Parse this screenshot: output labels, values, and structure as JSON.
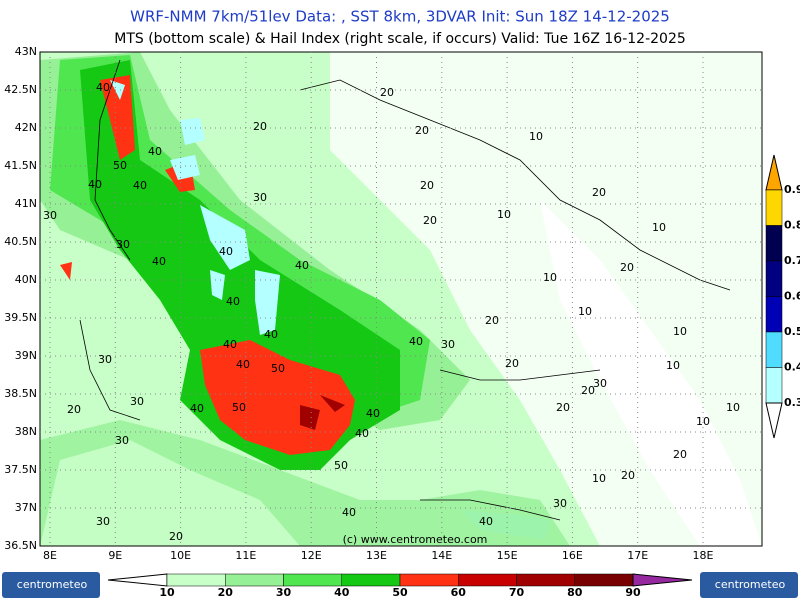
{
  "header": {
    "title": "WRF-NMM 7km/51lev   Data: , SST 8km, 3DVAR    Init: Sun 18Z 14-12-2025",
    "subtitle": "MTS (bottom scale) & Hail Index (right scale, if occurs) Valid: Tue 16Z 16-12-2025"
  },
  "map": {
    "lat_labels": [
      "43N",
      "42.5N",
      "42N",
      "41.5N",
      "41N",
      "40.5N",
      "40N",
      "39.5N",
      "39N",
      "38.5N",
      "38N",
      "37.5N",
      "37N",
      "36.5N"
    ],
    "lon_labels": [
      "8E",
      "9E",
      "10E",
      "11E",
      "12E",
      "13E",
      "14E",
      "15E",
      "16E",
      "17E",
      "18E"
    ],
    "watermark": "(c)  www.centrometeo.com",
    "contour_labels": [
      "40",
      "50",
      "40",
      "40",
      "30",
      "40",
      "30",
      "40",
      "20",
      "30",
      "40",
      "40",
      "40",
      "40",
      "40",
      "20",
      "20",
      "20",
      "20",
      "10",
      "20",
      "10",
      "10",
      "20",
      "10",
      "10",
      "20",
      "10",
      "40",
      "30",
      "30",
      "40",
      "50",
      "20",
      "10",
      "30",
      "20",
      "30",
      "40",
      "50",
      "20",
      "10",
      "20",
      "40",
      "40",
      "30",
      "10",
      "20",
      "50",
      "10",
      "20",
      "30",
      "40",
      "40",
      "30",
      "20"
    ]
  },
  "scale_bottom": {
    "labels": [
      "10",
      "20",
      "30",
      "40",
      "50",
      "60",
      "70",
      "80",
      "90"
    ],
    "colors": [
      "#ffffff",
      "#c8ffc8",
      "#96f096",
      "#50e650",
      "#14c814",
      "#ff3214",
      "#c80000",
      "#a00000",
      "#780000",
      "#c800c8",
      "#9628a0"
    ]
  },
  "scale_right": {
    "labels": [
      "0.9",
      "0.8",
      "0.7",
      "0.6",
      "0.5",
      "0.4",
      "0.3"
    ],
    "colors": [
      "#ffa500",
      "#ffd700",
      "#000050",
      "#000080",
      "#0000b4",
      "#50dcff",
      "#b4ffff",
      "#ffffff"
    ]
  },
  "logos": {
    "left": "centrometeo",
    "right": "centrometeo"
  }
}
